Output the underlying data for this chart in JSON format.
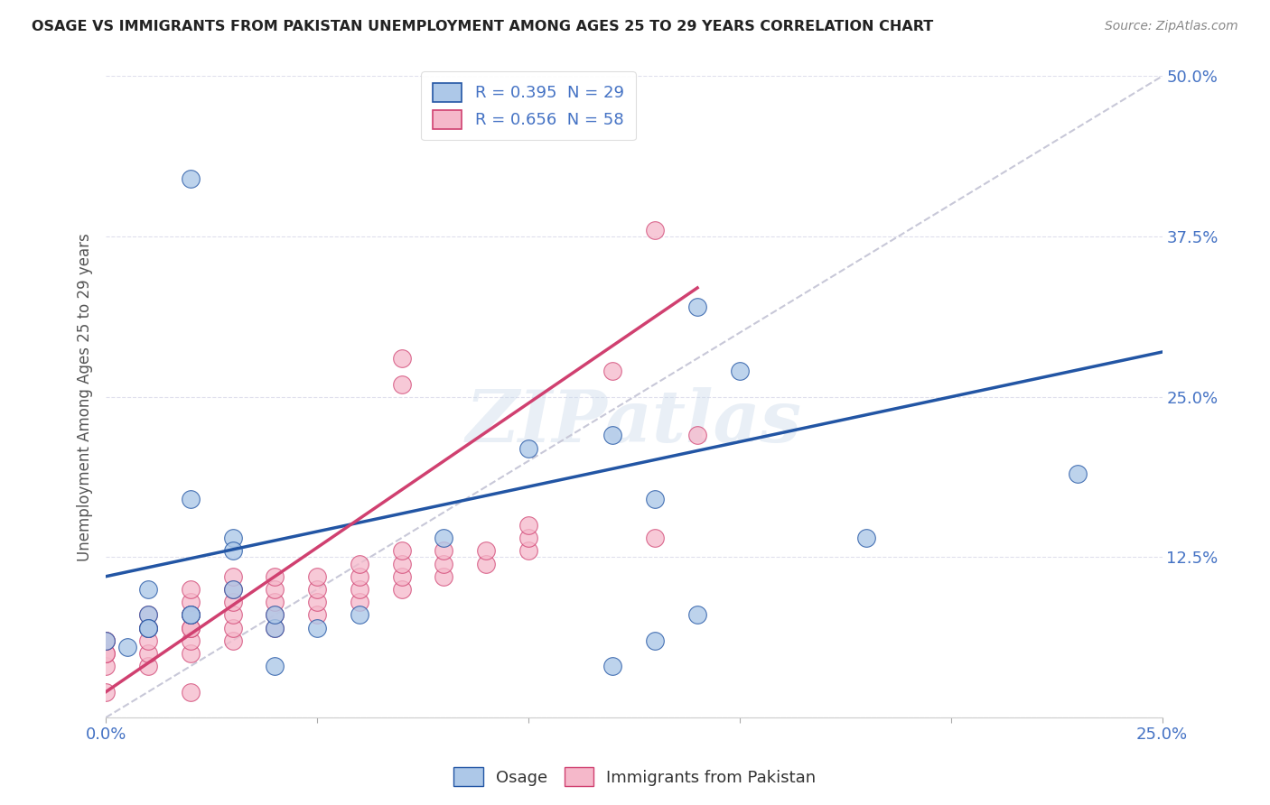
{
  "title": "OSAGE VS IMMIGRANTS FROM PAKISTAN UNEMPLOYMENT AMONG AGES 25 TO 29 YEARS CORRELATION CHART",
  "source": "Source: ZipAtlas.com",
  "ylabel": "Unemployment Among Ages 25 to 29 years",
  "xlim": [
    0,
    0.25
  ],
  "ylim": [
    0,
    0.5
  ],
  "xtick_vals": [
    0.0,
    0.05,
    0.1,
    0.15,
    0.2,
    0.25
  ],
  "xtick_labels": [
    "0.0%",
    "",
    "",
    "",
    "",
    "25.0%"
  ],
  "ytick_vals": [
    0.0,
    0.125,
    0.25,
    0.375,
    0.5
  ],
  "ytick_labels": [
    "",
    "12.5%",
    "25.0%",
    "37.5%",
    "50.0%"
  ],
  "legend_label1": "R = 0.395  N = 29",
  "legend_label2": "R = 0.656  N = 58",
  "legend_color1": "#adc8e8",
  "legend_color2": "#f5b8ca",
  "trend_color1": "#2255a4",
  "trend_color2": "#d04070",
  "ref_line_color": "#c8c8d8",
  "tick_color": "#4472c4",
  "watermark": "ZIPatlas",
  "background_color": "#ffffff",
  "osage_x": [
    0.005,
    0.02,
    0.04,
    0.13,
    0.14,
    0.01,
    0.01,
    0.02,
    0.03,
    0.04,
    0.05,
    0.06,
    0.02,
    0.03,
    0.0,
    0.01,
    0.01,
    0.02,
    0.14,
    0.18,
    0.15,
    0.23,
    0.12,
    0.1,
    0.08,
    0.03,
    0.04,
    0.13,
    0.12
  ],
  "osage_y": [
    0.055,
    0.17,
    0.04,
    0.17,
    0.08,
    0.1,
    0.08,
    0.08,
    0.14,
    0.07,
    0.07,
    0.08,
    0.08,
    0.13,
    0.06,
    0.07,
    0.07,
    0.42,
    0.32,
    0.14,
    0.27,
    0.19,
    0.22,
    0.21,
    0.14,
    0.1,
    0.08,
    0.06,
    0.04
  ],
  "pakistan_x": [
    0.0,
    0.0,
    0.0,
    0.0,
    0.0,
    0.01,
    0.01,
    0.01,
    0.01,
    0.01,
    0.01,
    0.02,
    0.02,
    0.02,
    0.02,
    0.02,
    0.02,
    0.02,
    0.02,
    0.03,
    0.03,
    0.03,
    0.03,
    0.03,
    0.03,
    0.04,
    0.04,
    0.04,
    0.04,
    0.04,
    0.05,
    0.05,
    0.05,
    0.05,
    0.06,
    0.06,
    0.06,
    0.06,
    0.07,
    0.07,
    0.07,
    0.07,
    0.07,
    0.07,
    0.08,
    0.08,
    0.08,
    0.09,
    0.09,
    0.1,
    0.1,
    0.1,
    0.12,
    0.13,
    0.13,
    0.14,
    0.02,
    0.0
  ],
  "pakistan_y": [
    0.04,
    0.05,
    0.05,
    0.06,
    0.06,
    0.04,
    0.05,
    0.06,
    0.07,
    0.07,
    0.08,
    0.05,
    0.06,
    0.07,
    0.07,
    0.08,
    0.08,
    0.09,
    0.1,
    0.06,
    0.07,
    0.08,
    0.09,
    0.1,
    0.11,
    0.07,
    0.08,
    0.09,
    0.1,
    0.11,
    0.08,
    0.09,
    0.1,
    0.11,
    0.09,
    0.1,
    0.11,
    0.12,
    0.1,
    0.11,
    0.12,
    0.13,
    0.28,
    0.26,
    0.11,
    0.12,
    0.13,
    0.12,
    0.13,
    0.13,
    0.14,
    0.15,
    0.27,
    0.14,
    0.38,
    0.22,
    0.02,
    0.02
  ],
  "blue_line_x0": 0.0,
  "blue_line_y0": 0.11,
  "blue_line_x1": 0.25,
  "blue_line_y1": 0.285,
  "pink_line_x0": 0.0,
  "pink_line_y0": 0.02,
  "pink_line_x1": 0.14,
  "pink_line_y1": 0.335,
  "ref_line_x0": 0.0,
  "ref_line_y0": 0.0,
  "ref_line_x1": 0.25,
  "ref_line_y1": 0.5
}
